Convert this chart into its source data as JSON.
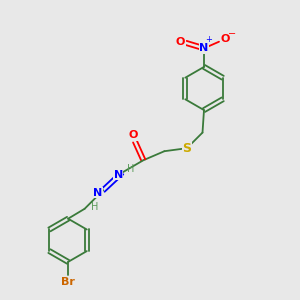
{
  "background_color": "#e8e8e8",
  "bond_color": "#3a7a3a",
  "atom_colors": {
    "O": "#ff0000",
    "N": "#0000ff",
    "S": "#ccaa00",
    "Br": "#cc6600",
    "C": "#3a7a3a",
    "H": "#5a9a5a"
  },
  "figsize": [
    3.0,
    3.0
  ],
  "dpi": 100
}
